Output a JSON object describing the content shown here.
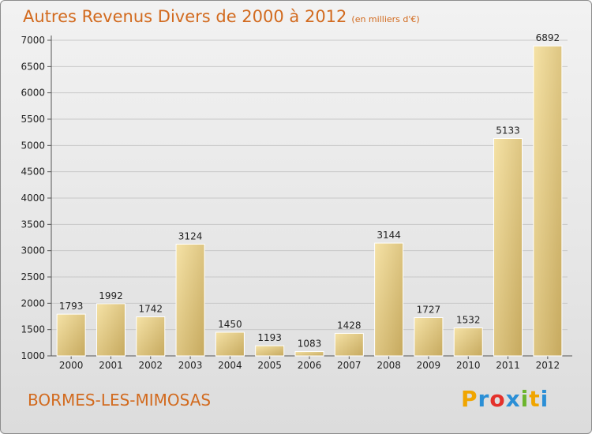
{
  "title": "Autres Revenus Divers de 2000 à 2012",
  "subtitle": "(en milliers d'€)",
  "place": "BORMES-LES-MIMOSAS",
  "logo": {
    "letters": [
      "P",
      "r",
      "o",
      "x",
      "i",
      "t",
      "i"
    ],
    "colors": [
      "#f0a500",
      "#2b8fd6",
      "#e4312b",
      "#2b8fd6",
      "#6cb52d",
      "#f0a500",
      "#2b8fd6"
    ]
  },
  "colors": {
    "title": "#d26a1e",
    "bar_light": "#f3dc9a",
    "bar_dark": "#c9ad62",
    "grid": "#c8c8c8"
  },
  "chart_data": {
    "type": "bar",
    "title": "Autres Revenus Divers de 2000 à 2012",
    "categories": [
      "2000",
      "2001",
      "2002",
      "2003",
      "2004",
      "2005",
      "2006",
      "2007",
      "2008",
      "2009",
      "2010",
      "2011",
      "2012"
    ],
    "values": [
      1793,
      1992,
      1742,
      3124,
      1450,
      1193,
      1083,
      1428,
      3144,
      1727,
      1532,
      5133,
      6892
    ],
    "ylim": [
      1000,
      7000
    ],
    "yticks": [
      1000,
      1500,
      2000,
      2500,
      3000,
      3500,
      4000,
      4500,
      5000,
      5500,
      6000,
      6500,
      7000
    ],
    "grid": true
  }
}
